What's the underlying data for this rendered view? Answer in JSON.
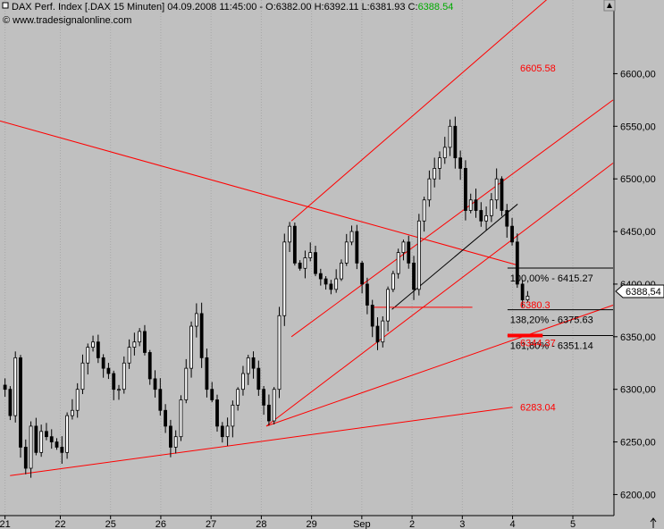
{
  "header": {
    "title": "DAX Perf. Index [.DAX  15 Minuten] 04.09.2008 11:45:00 - O:6382.00 H:6392.11 L:6381.93 C:",
    "close_value": "6388.54",
    "copyright": "© www.tradesignalonline.com"
  },
  "price_tag": "6388,54",
  "colors": {
    "background": "#c0c0c0",
    "candles": "#000000",
    "lines": "#ff0000",
    "close_tag": "#00aa00"
  },
  "icons": {
    "corner_marker": "square-marker-icon",
    "top_right": "scroll-up-arrow-icon",
    "bottom_right": "up-arrow-icon"
  },
  "chart_data": {
    "type": "candlestick",
    "title": "DAX Perf. Index [.DAX  15 Minuten]",
    "ylim": [
      6180,
      6670
    ],
    "y_ticks": [
      "6200,00",
      "6250,00",
      "6300,00",
      "6350,00",
      "6400,00",
      "6450,00",
      "6500,00",
      "6550,00",
      "6600,00"
    ],
    "y_tick_values": [
      6200,
      6250,
      6300,
      6350,
      6400,
      6450,
      6500,
      6550,
      6600
    ],
    "x_ticks": [
      "21",
      "22",
      "25",
      "26",
      "27",
      "28",
      "29",
      "Sep",
      "2",
      "3",
      "4",
      "5"
    ],
    "x_tick_slots": [
      1,
      12,
      22,
      32,
      42,
      52,
      62,
      72,
      82,
      92,
      102,
      114
    ],
    "slot_count": 122,
    "series": [
      {
        "values": [
          6300,
          6275,
          6330,
          6245,
          6225,
          6265,
          6240,
          6260,
          6255,
          6250,
          6245,
          6240,
          6275,
          6280,
          6300,
          6325,
          6340,
          6345,
          6330,
          6320,
          6315,
          6300,
          6300,
          6325,
          6340,
          6345,
          6355,
          6335,
          6310,
          6300,
          6280,
          6265,
          6245,
          6255,
          6290,
          6320,
          6360,
          6372,
          6330,
          6300,
          6290,
          6265,
          6255,
          6265,
          6285,
          6300,
          6315,
          6330,
          6320,
          6300,
          6285,
          6270,
          6300,
          6370,
          6440,
          6455,
          6420,
          6415,
          6425,
          6430,
          6410,
          6405,
          6400,
          6395,
          6405,
          6420,
          6440,
          6450,
          6420,
          6400,
          6380,
          6360,
          6345,
          6365,
          6395,
          6410,
          6430,
          6440,
          6420,
          6395,
          6460,
          6480,
          6500,
          6510,
          6520,
          6530,
          6550,
          6520,
          6510,
          6470,
          6480,
          6470,
          6460,
          6465,
          6480,
          6500,
          6470,
          6455,
          6440,
          6400,
          6385,
          6388.54
        ],
        "note": "approx 15-minute closes (read off the axes)"
      }
    ],
    "annotations": [
      {
        "text": "6605.58",
        "value": 6605.58
      },
      {
        "text": "100,00% - 6415.27",
        "value": 6415.27
      },
      {
        "text": "6380.3",
        "value": 6380.3
      },
      {
        "text": "138,20% - 6375.63",
        "value": 6375.63
      },
      {
        "text": "161,80% - 6351.14",
        "value": 6351.14
      },
      {
        "text": "6344.37",
        "value": 6344.37
      },
      {
        "text": "6283.04",
        "value": 6283.04
      }
    ],
    "horizontal_levels": [
      6415.27,
      6375.63,
      6351.14
    ],
    "trendlines": [
      {
        "from": [
          0,
          6555
        ],
        "to": [
          103,
          6418
        ]
      },
      {
        "from": [
          58,
          6460
        ],
        "to": [
          122,
          6725
        ]
      },
      {
        "from": [
          2,
          6218
        ],
        "to": [
          102,
          6283
        ]
      },
      {
        "from": [
          53,
          6265
        ],
        "to": [
          122,
          6515
        ]
      },
      {
        "from": [
          53,
          6265
        ],
        "to": [
          122,
          6380
        ]
      },
      {
        "from": [
          58,
          6350
        ],
        "to": [
          122,
          6575
        ]
      },
      {
        "from": [
          78,
          6376
        ],
        "to": [
          103,
          6476
        ]
      },
      {
        "from": [
          74,
          6378
        ],
        "to": [
          94,
          6378
        ]
      }
    ]
  }
}
